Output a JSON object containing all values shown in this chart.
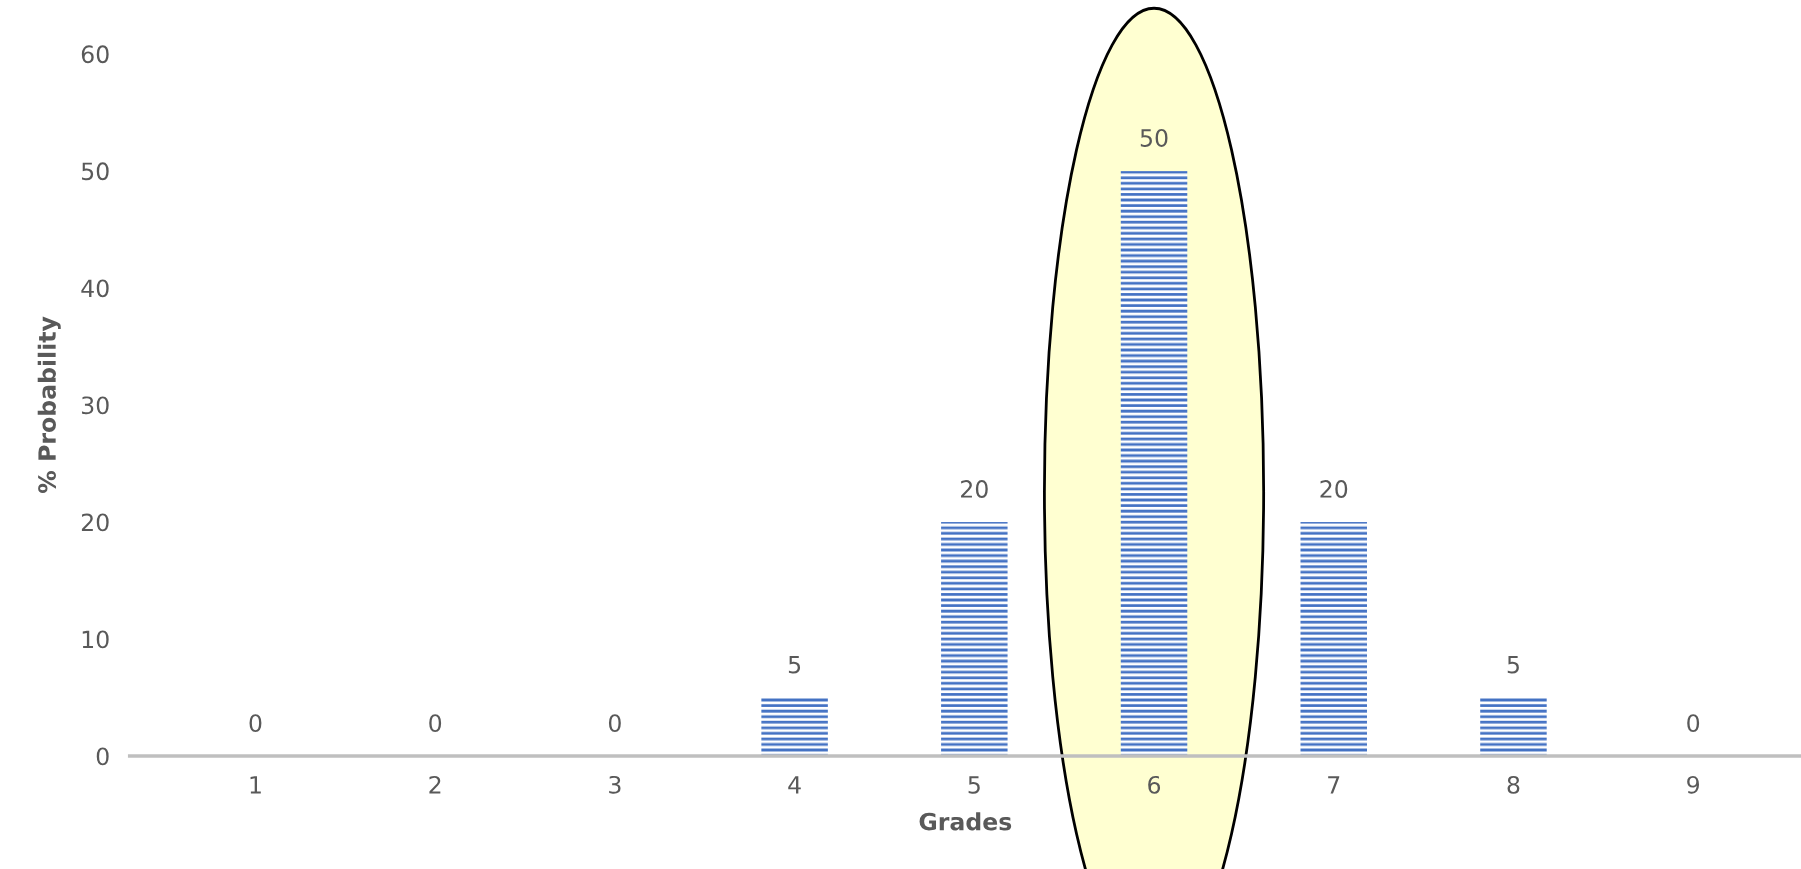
{
  "chart_data": {
    "type": "bar",
    "xlabel": "Grades",
    "ylabel": "% Probability",
    "categories": [
      "1",
      "2",
      "3",
      "4",
      "5",
      "6",
      "7",
      "8",
      "9"
    ],
    "values": [
      0,
      0,
      0,
      5,
      20,
      50,
      20,
      5,
      0
    ],
    "color": "#4472c4",
    "ylim": [
      0,
      60
    ],
    "yticks": [
      0,
      10,
      20,
      30,
      40,
      50,
      60
    ],
    "data_labels": true,
    "grid": false
  }
}
